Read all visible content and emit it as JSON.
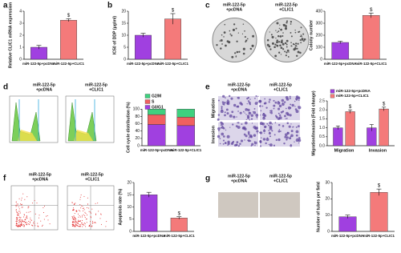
{
  "chart_data": [
    {
      "type": "bar",
      "panel": "a",
      "ylabel": "Relative CLIC1 mRNA expression",
      "categories": [
        "miR-122-5p+pcDNA",
        "miR-122-5p+CLIC1"
      ],
      "values": [
        1.0,
        3.25
      ],
      "errors": [
        0.15,
        0.12
      ],
      "significance": [
        null,
        "$"
      ],
      "colors": [
        "#a040e0",
        "#f47a7a"
      ],
      "ylim": [
        0,
        4
      ],
      "yticks": [
        0,
        1,
        2,
        3,
        4
      ]
    },
    {
      "type": "bar",
      "panel": "b",
      "ylabel": "IC50 of DDP (μg/ml)",
      "categories": [
        "miR-122-5p+pcDNA",
        "miR-122-5p+CLIC1"
      ],
      "values": [
        10,
        16.8
      ],
      "errors": [
        0.8,
        2.2
      ],
      "significance": [
        null,
        "$"
      ],
      "colors": [
        "#a040e0",
        "#f47a7a"
      ],
      "ylim": [
        0,
        20
      ],
      "yticks": [
        0,
        5,
        10,
        15,
        20
      ]
    },
    {
      "type": "bar",
      "panel": "c",
      "ylabel": "Colony number",
      "categories": [
        "miR-122-5p+pcDNA",
        "miR-122-5p+CLIC1"
      ],
      "values": [
        140,
        365
      ],
      "errors": [
        10,
        20
      ],
      "significance": [
        null,
        "$"
      ],
      "colors": [
        "#a040e0",
        "#f47a7a"
      ],
      "ylim": [
        0,
        400
      ],
      "yticks": [
        0,
        100,
        200,
        300,
        400
      ]
    },
    {
      "type": "stacked",
      "panel": "d",
      "ylabel": "Cell cycle distribution (%)",
      "categories": [
        "miR-122-5p+pcDNA",
        "miR-122-5p+CLIC1"
      ],
      "series": [
        {
          "name": "G2/M",
          "color": "#3fd17f",
          "values": [
            15,
            22
          ]
        },
        {
          "name": "S",
          "color": "#f06060",
          "values": [
            27,
            23
          ]
        },
        {
          "name": "G0/G1",
          "color": "#a040e0",
          "values": [
            58,
            55
          ]
        }
      ],
      "ylim": [
        0,
        140
      ],
      "yticks": [
        0,
        20,
        40,
        60,
        80,
        100
      ]
    },
    {
      "type": "grouped",
      "panel": "e",
      "ylabel": "Migration/Invasion (Fold change)",
      "categories": [
        "Migration",
        "Invasion"
      ],
      "series": [
        {
          "name": "miR-122-5p+pcDNA",
          "color": "#a040e0",
          "values": [
            1.0,
            1.0
          ],
          "errors": [
            0.1,
            0.18
          ],
          "significance": [
            null,
            null
          ]
        },
        {
          "name": "miR-122-5p+CLIC1",
          "color": "#f47a7a",
          "values": [
            1.9,
            2.05
          ],
          "errors": [
            0.1,
            0.1
          ],
          "significance": [
            "$",
            "$"
          ]
        }
      ],
      "ylim": [
        0,
        2.5
      ],
      "yticks": [
        {
          "value": 0,
          "label": "0.0"
        },
        0.5,
        {
          "value": 1,
          "label": "1.0"
        },
        1.5,
        {
          "value": 2,
          "label": "2.0"
        },
        2.5
      ]
    },
    {
      "type": "bar",
      "panel": "f",
      "ylabel": "Apoptosis rate (%)",
      "categories": [
        "miR-122-5p+pcDNA",
        "miR-122-5p+CLIC1"
      ],
      "values": [
        15,
        5.5
      ],
      "errors": [
        1.0,
        0.5
      ],
      "significance": [
        null,
        "$"
      ],
      "colors": [
        "#a040e0",
        "#f47a7a"
      ],
      "ylim": [
        0,
        20
      ],
      "yticks": [
        0,
        5,
        10,
        15,
        20
      ]
    },
    {
      "type": "bar",
      "panel": "g",
      "ylabel": "Number of tubes per field",
      "categories": [
        "miR-122-5p+pcDNA",
        "miR-122-5p+CLIC1"
      ],
      "values": [
        9,
        24
      ],
      "errors": [
        1.0,
        2.0
      ],
      "significance": [
        null,
        "$"
      ],
      "colors": [
        "#a040e0",
        "#f47a7a"
      ],
      "ylim": [
        0,
        30
      ],
      "yticks": [
        0,
        10,
        20,
        30
      ]
    }
  ],
  "image_panels": [
    {
      "captions": [
        [
          "miR-122-5p",
          "+pcDNA"
        ],
        [
          "miR-122-5p",
          "+CLIC1"
        ]
      ]
    },
    {
      "captions": [
        [
          "miR-122-5p",
          "+pcDNA"
        ],
        [
          "miR-122-5p",
          "+CLIC1"
        ]
      ]
    },
    {
      "captions": [
        [
          "miR-122-5p",
          "+pcDNA"
        ],
        [
          "miR-122-5p",
          "+CLIC1"
        ]
      ],
      "row_labels": [
        "Migration",
        "Invasion"
      ]
    },
    {
      "captions": [
        [
          "miR-122-5p",
          "+pcDNA"
        ],
        [
          "miR-122-5p",
          "+CLIC1"
        ]
      ]
    },
    {
      "captions": [
        [
          "miR-122-5p",
          "+pcDNA"
        ],
        [
          "miR-122-5p",
          "+CLIC1"
        ]
      ]
    }
  ]
}
